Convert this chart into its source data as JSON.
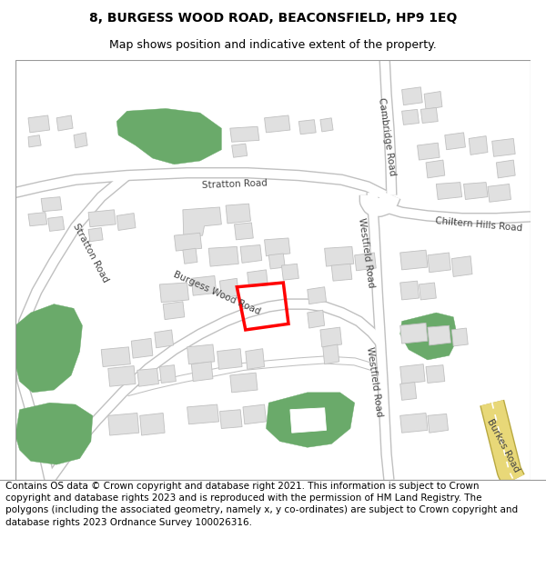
{
  "title": "8, BURGESS WOOD ROAD, BEACONSFIELD, HP9 1EQ",
  "subtitle": "Map shows position and indicative extent of the property.",
  "footer": "Contains OS data © Crown copyright and database right 2021. This information is subject to Crown copyright and database rights 2023 and is reproduced with the permission of HM Land Registry. The polygons (including the associated geometry, namely x, y co-ordinates) are subject to Crown copyright and database rights 2023 Ordnance Survey 100026316.",
  "map_bg": "#ffffff",
  "road_color": "#ffffff",
  "road_border": "#c8c8c8",
  "building_fill": "#e0e0e0",
  "building_edge": "#c0c0c0",
  "green_fill": "#6aaa6a",
  "highlight_color": "#ff0000",
  "burkes_road_color": "#e8d878",
  "title_fontsize": 10,
  "subtitle_fontsize": 9,
  "footer_fontsize": 7.5,
  "fig_width": 6.0,
  "fig_height": 6.25
}
